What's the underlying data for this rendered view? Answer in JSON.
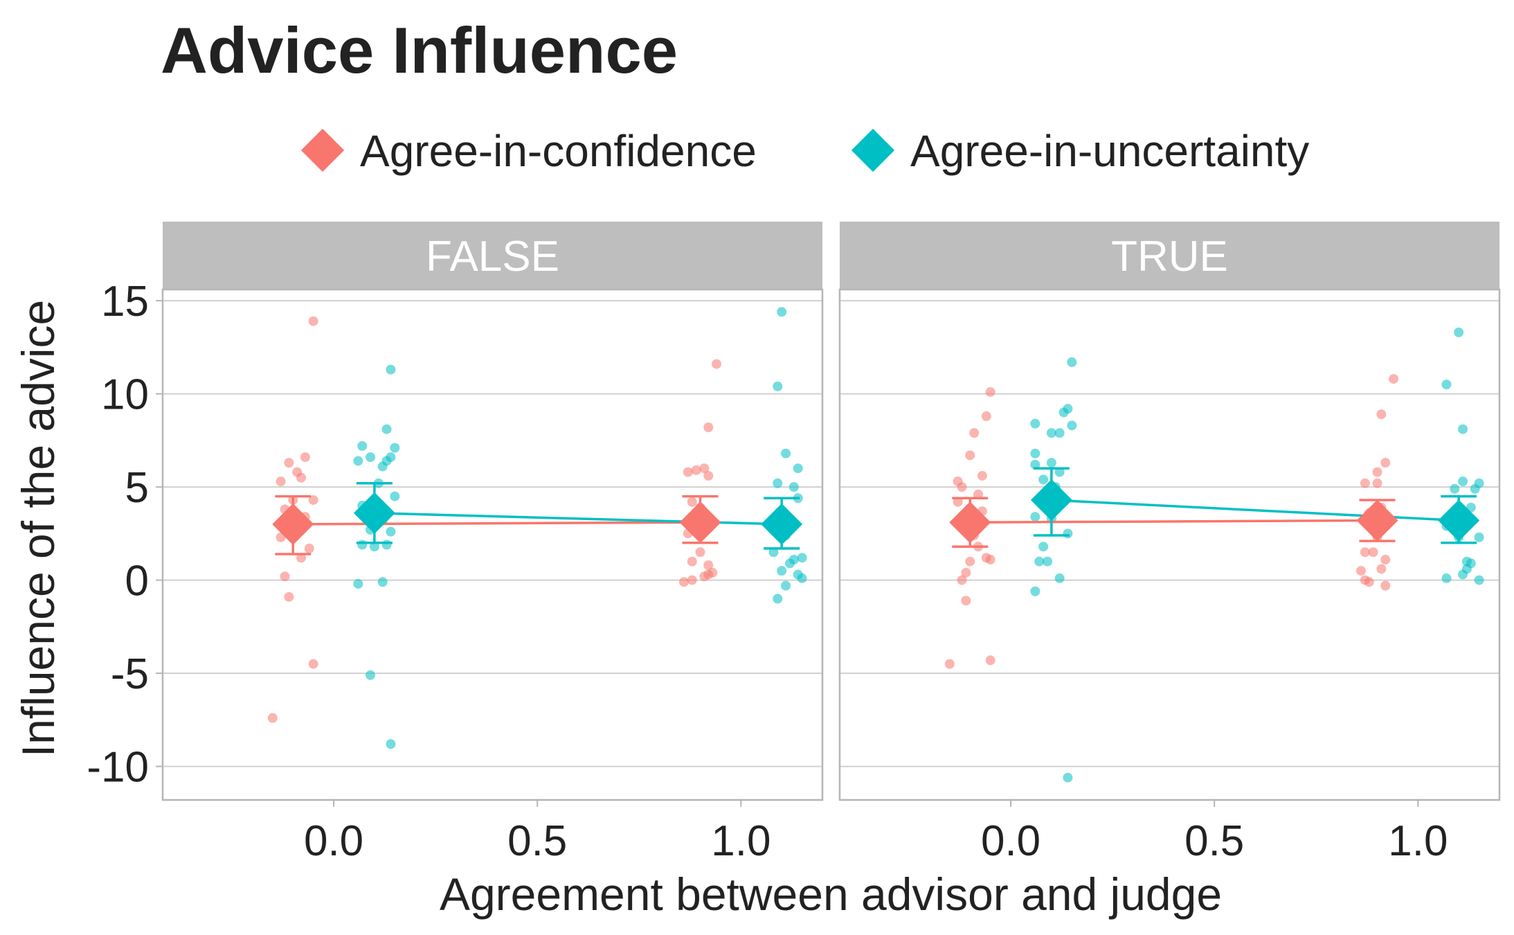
{
  "title": "Advice Influence",
  "legend": {
    "position": "top",
    "items": [
      {
        "label": "Agree-in-confidence",
        "color": "#F8766D",
        "shape": "diamond"
      },
      {
        "label": "Agree-in-uncertainty",
        "color": "#00BFC4",
        "shape": "diamond"
      }
    ]
  },
  "chart_data": {
    "type": "scatter",
    "title": "Advice Influence",
    "xlabel": "Agreement between advisor and judge",
    "ylabel": "Influence of the advice",
    "xlim": [
      -0.42,
      1.2
    ],
    "ylim": [
      -11.8,
      15.6
    ],
    "x_ticks": [
      0.0,
      0.5,
      1.0
    ],
    "x_tick_labels": [
      "0.0",
      "0.5",
      "1.0"
    ],
    "y_ticks": [
      -10,
      -5,
      0,
      5,
      10,
      15
    ],
    "y_tick_labels": [
      "-10",
      "-5",
      "0",
      "5",
      "10",
      "15"
    ],
    "grid": true,
    "facet_labels": [
      "FALSE",
      "TRUE"
    ],
    "panels": [
      {
        "facet": "FALSE",
        "series": [
          {
            "name": "Agree-in-confidence",
            "color": "#F8766D",
            "summary": [
              {
                "x": -0.1,
                "mean": 3.0,
                "ci_low": 1.4,
                "ci_high": 4.5
              },
              {
                "x": 0.9,
                "mean": 3.1,
                "ci_low": 2.0,
                "ci_high": 4.5
              }
            ],
            "points": [
              [
                -0.05,
                13.9
              ],
              [
                -0.15,
                -7.4
              ],
              [
                -0.05,
                -4.5
              ],
              [
                -0.11,
                -0.9
              ],
              [
                -0.12,
                0.2
              ],
              [
                -0.08,
                1.2
              ],
              [
                -0.06,
                1.7
              ],
              [
                -0.13,
                2.3
              ],
              [
                -0.1,
                2.5
              ],
              [
                -0.09,
                3.0
              ],
              [
                -0.07,
                3.4
              ],
              [
                -0.12,
                3.8
              ],
              [
                -0.1,
                4.3
              ],
              [
                -0.05,
                4.3
              ],
              [
                -0.13,
                5.3
              ],
              [
                -0.08,
                5.5
              ],
              [
                -0.09,
                5.8
              ],
              [
                -0.11,
                6.3
              ],
              [
                -0.07,
                6.6
              ],
              [
                0.86,
                -0.1
              ],
              [
                0.88,
                0.0
              ],
              [
                0.91,
                0.2
              ],
              [
                0.92,
                0.3
              ],
              [
                0.93,
                0.4
              ],
              [
                0.92,
                0.8
              ],
              [
                0.88,
                1.0
              ],
              [
                0.9,
                1.5
              ],
              [
                0.87,
                2.5
              ],
              [
                0.9,
                3.0
              ],
              [
                0.92,
                3.3
              ],
              [
                0.89,
                3.5
              ],
              [
                0.9,
                3.9
              ],
              [
                0.88,
                4.2
              ],
              [
                0.92,
                5.6
              ],
              [
                0.87,
                5.8
              ],
              [
                0.89,
                5.9
              ],
              [
                0.91,
                6.0
              ],
              [
                0.92,
                8.2
              ],
              [
                0.94,
                11.6
              ]
            ]
          },
          {
            "name": "Agree-in-uncertainty",
            "color": "#00BFC4",
            "summary": [
              {
                "x": 0.1,
                "mean": 3.6,
                "ci_low": 2.0,
                "ci_high": 5.2
              },
              {
                "x": 1.1,
                "mean": 3.0,
                "ci_low": 1.7,
                "ci_high": 4.4
              }
            ],
            "points": [
              [
                0.14,
                -8.8
              ],
              [
                0.09,
                -5.1
              ],
              [
                0.12,
                -0.1
              ],
              [
                0.06,
                -0.2
              ],
              [
                0.1,
                1.8
              ],
              [
                0.13,
                1.9
              ],
              [
                0.07,
                1.9
              ],
              [
                0.14,
                2.6
              ],
              [
                0.09,
                2.7
              ],
              [
                0.12,
                3.2
              ],
              [
                0.1,
                3.5
              ],
              [
                0.07,
                4.0
              ],
              [
                0.15,
                4.5
              ],
              [
                0.11,
                5.2
              ],
              [
                0.06,
                6.4
              ],
              [
                0.12,
                6.1
              ],
              [
                0.13,
                6.4
              ],
              [
                0.14,
                6.6
              ],
              [
                0.09,
                6.6
              ],
              [
                0.15,
                7.1
              ],
              [
                0.07,
                7.2
              ],
              [
                0.13,
                8.1
              ],
              [
                0.14,
                11.3
              ],
              [
                1.09,
                -1.0
              ],
              [
                1.11,
                -0.3
              ],
              [
                1.15,
                0.1
              ],
              [
                1.14,
                0.3
              ],
              [
                1.1,
                0.5
              ],
              [
                1.12,
                0.9
              ],
              [
                1.13,
                1.1
              ],
              [
                1.15,
                1.2
              ],
              [
                1.08,
                1.5
              ],
              [
                1.11,
                2.4
              ],
              [
                1.12,
                3.0
              ],
              [
                1.1,
                3.3
              ],
              [
                1.14,
                4.4
              ],
              [
                1.09,
                5.2
              ],
              [
                1.13,
                5.0
              ],
              [
                1.14,
                6.0
              ],
              [
                1.11,
                6.8
              ],
              [
                1.09,
                10.4
              ],
              [
                1.1,
                14.4
              ]
            ]
          }
        ]
      },
      {
        "facet": "TRUE",
        "series": [
          {
            "name": "Agree-in-confidence",
            "color": "#F8766D",
            "summary": [
              {
                "x": -0.1,
                "mean": 3.1,
                "ci_low": 1.8,
                "ci_high": 4.4
              },
              {
                "x": 0.9,
                "mean": 3.2,
                "ci_low": 2.1,
                "ci_high": 4.3
              }
            ],
            "points": [
              [
                -0.15,
                -4.5
              ],
              [
                -0.05,
                -4.3
              ],
              [
                -0.11,
                -1.1
              ],
              [
                -0.12,
                0.0
              ],
              [
                -0.11,
                0.4
              ],
              [
                -0.1,
                1.0
              ],
              [
                -0.05,
                1.1
              ],
              [
                -0.06,
                1.2
              ],
              [
                -0.08,
                1.8
              ],
              [
                -0.09,
                2.4
              ],
              [
                -0.12,
                2.9
              ],
              [
                -0.1,
                3.3
              ],
              [
                -0.07,
                3.7
              ],
              [
                -0.13,
                4.2
              ],
              [
                -0.08,
                4.6
              ],
              [
                -0.12,
                5.0
              ],
              [
                -0.13,
                5.3
              ],
              [
                -0.07,
                5.6
              ],
              [
                -0.1,
                6.7
              ],
              [
                -0.09,
                7.9
              ],
              [
                -0.06,
                8.8
              ],
              [
                -0.05,
                10.1
              ],
              [
                0.86,
                0.5
              ],
              [
                0.87,
                0.0
              ],
              [
                0.88,
                -0.1
              ],
              [
                0.91,
                0.6
              ],
              [
                0.92,
                -0.3
              ],
              [
                0.92,
                1.1
              ],
              [
                0.87,
                1.5
              ],
              [
                0.89,
                1.5
              ],
              [
                0.9,
                2.3
              ],
              [
                0.9,
                2.6
              ],
              [
                0.92,
                3.1
              ],
              [
                0.88,
                3.6
              ],
              [
                0.91,
                3.9
              ],
              [
                0.87,
                5.2
              ],
              [
                0.9,
                5.2
              ],
              [
                0.9,
                5.8
              ],
              [
                0.92,
                6.3
              ],
              [
                0.91,
                8.9
              ],
              [
                0.94,
                10.8
              ]
            ]
          },
          {
            "name": "Agree-in-uncertainty",
            "color": "#00BFC4",
            "summary": [
              {
                "x": 0.1,
                "mean": 4.3,
                "ci_low": 2.4,
                "ci_high": 6.0
              },
              {
                "x": 1.1,
                "mean": 3.2,
                "ci_low": 2.0,
                "ci_high": 4.5
              }
            ],
            "points": [
              [
                0.14,
                -10.6
              ],
              [
                0.06,
                -0.6
              ],
              [
                0.12,
                0.1
              ],
              [
                0.07,
                1.0
              ],
              [
                0.09,
                1.0
              ],
              [
                0.08,
                1.8
              ],
              [
                0.14,
                2.5
              ],
              [
                0.1,
                3.3
              ],
              [
                0.06,
                3.4
              ],
              [
                0.13,
                4.2
              ],
              [
                0.09,
                4.6
              ],
              [
                0.11,
                5.0
              ],
              [
                0.08,
                5.4
              ],
              [
                0.12,
                5.8
              ],
              [
                0.06,
                6.2
              ],
              [
                0.1,
                6.3
              ],
              [
                0.06,
                6.8
              ],
              [
                0.12,
                7.9
              ],
              [
                0.1,
                7.9
              ],
              [
                0.15,
                8.3
              ],
              [
                0.06,
                8.4
              ],
              [
                0.13,
                9.0
              ],
              [
                0.14,
                9.2
              ],
              [
                0.15,
                11.7
              ],
              [
                1.07,
                0.1
              ],
              [
                1.11,
                0.3
              ],
              [
                1.12,
                0.6
              ],
              [
                1.13,
                0.9
              ],
              [
                1.15,
                0.0
              ],
              [
                1.12,
                1.0
              ],
              [
                1.1,
                2.3
              ],
              [
                1.15,
                2.3
              ],
              [
                1.07,
                2.9
              ],
              [
                1.11,
                3.3
              ],
              [
                1.09,
                3.5
              ],
              [
                1.13,
                3.9
              ],
              [
                1.14,
                4.9
              ],
              [
                1.09,
                4.9
              ],
              [
                1.11,
                5.3
              ],
              [
                1.15,
                5.2
              ],
              [
                1.11,
                8.1
              ],
              [
                1.07,
                10.5
              ],
              [
                1.1,
                13.3
              ]
            ]
          }
        ]
      }
    ]
  }
}
